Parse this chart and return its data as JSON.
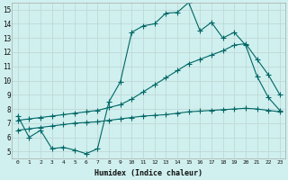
{
  "xlabel": "Humidex (Indice chaleur)",
  "bg_color": "#cff0ee",
  "line_color": "#006666",
  "grid_color": "#c0d8d8",
  "xlim": [
    -0.5,
    23.5
  ],
  "ylim": [
    4.5,
    15.5
  ],
  "yticks": [
    5,
    6,
    7,
    8,
    9,
    10,
    11,
    12,
    13,
    14,
    15
  ],
  "xticks": [
    0,
    1,
    2,
    3,
    4,
    5,
    6,
    7,
    8,
    9,
    10,
    11,
    12,
    13,
    14,
    15,
    16,
    17,
    18,
    19,
    20,
    21,
    22,
    23
  ],
  "line_jagged": {
    "x": [
      0,
      1,
      2,
      3,
      4,
      5,
      6,
      7,
      8,
      9,
      10,
      11,
      12,
      13,
      14,
      15,
      16,
      17,
      18,
      19,
      20,
      21,
      22,
      23
    ],
    "y": [
      7.5,
      6.0,
      6.5,
      5.2,
      5.3,
      5.1,
      4.85,
      5.2,
      8.5,
      9.9,
      13.4,
      13.85,
      14.0,
      14.75,
      14.8,
      15.5,
      13.5,
      14.1,
      13.0,
      13.4,
      12.5,
      10.3,
      8.8,
      7.9
    ]
  },
  "line_upper_diag": {
    "x": [
      0,
      1,
      2,
      3,
      4,
      5,
      6,
      7,
      8,
      9,
      10,
      11,
      12,
      13,
      14,
      15,
      16,
      17,
      18,
      19,
      20,
      21,
      22,
      23
    ],
    "y": [
      7.2,
      7.3,
      7.4,
      7.5,
      7.6,
      7.7,
      7.8,
      7.9,
      8.1,
      8.3,
      8.7,
      9.2,
      9.7,
      10.2,
      10.7,
      11.2,
      11.5,
      11.8,
      12.1,
      12.5,
      12.6,
      11.5,
      10.4,
      9.0
    ]
  },
  "line_lower_diag": {
    "x": [
      0,
      1,
      2,
      3,
      4,
      5,
      6,
      7,
      8,
      9,
      10,
      11,
      12,
      13,
      14,
      15,
      16,
      17,
      18,
      19,
      20,
      21,
      22,
      23
    ],
    "y": [
      6.5,
      6.6,
      6.7,
      6.8,
      6.9,
      7.0,
      7.05,
      7.1,
      7.2,
      7.3,
      7.4,
      7.5,
      7.55,
      7.6,
      7.7,
      7.8,
      7.85,
      7.9,
      7.95,
      8.0,
      8.05,
      8.0,
      7.9,
      7.8
    ]
  }
}
